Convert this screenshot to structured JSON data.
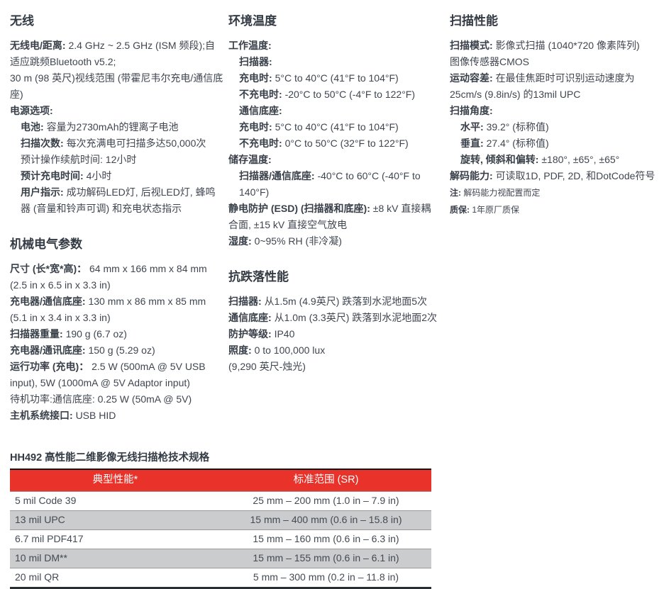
{
  "colors": {
    "accent_red": "#E8322A",
    "row_gray": "#CBCCCE",
    "text_dark": "#3F4650",
    "header_text": "#FFFFFF"
  },
  "columns": {
    "left": {
      "sections": [
        {
          "title": "无线",
          "items": [
            {
              "label": "无线电/距离:",
              "text": "2.4 GHz ~ 2.5 GHz (ISM 频段);自适应跳频Bluetooth v5.2;",
              "indent": 0
            },
            {
              "label": "",
              "text": "30 m (98 英尺)视线范围 (带霍尼韦尔充电/通信底座)",
              "indent": 0
            },
            {
              "label": "电源选项:",
              "text": "",
              "indent": 0
            },
            {
              "label": "电池:",
              "text": "容量为2730mAh的锂离子电池",
              "indent": 1
            },
            {
              "label": "扫描次数:",
              "text": "每次充满电可扫描多达50,000次",
              "indent": 1
            },
            {
              "label": "",
              "text": "预计操作续航时间: 12小时",
              "indent": 1
            },
            {
              "label": "预计充电时间:",
              "text": "4小时",
              "indent": 1
            },
            {
              "label": "用户指示:",
              "text": "成功解码LED灯, 后视LED灯, 蜂鸣器 (音量和铃声可调) 和充电状态指示",
              "indent": 1
            }
          ]
        },
        {
          "title": "机械电气参数",
          "items": [
            {
              "label": "尺寸 (长*宽*高)：",
              "text": "64 mm x 166 mm x 84 mm (2.5 in x 6.5 in x 3.3 in)",
              "indent": 0
            },
            {
              "label": "充电器/通信底座:",
              "text": "130 mm x 86 mm x 85 mm (5.1 in x 3.4 in x 3.3 in)",
              "indent": 0
            },
            {
              "label": "扫描器重量:",
              "text": "190 g (6.7 oz)",
              "indent": 0
            },
            {
              "label": "充电器/通讯底座:",
              "text": "150 g (5.29 oz)",
              "indent": 0
            },
            {
              "label": "运行功率 (充电)：",
              "text": "2.5 W (500mA @ 5V USB input), 5W (1000mA @ 5V Adaptor input)",
              "indent": 0
            },
            {
              "label": "",
              "text": "待机功率:通信底座: 0.25 W (50mA @ 5V)",
              "indent": 0
            },
            {
              "label": "主机系统接口:",
              "text": "USB HID",
              "indent": 0
            }
          ]
        }
      ]
    },
    "middle": {
      "sections": [
        {
          "title": "环境温度",
          "items": [
            {
              "label": "工作温度:",
              "text": "",
              "indent": 0
            },
            {
              "label": "扫描器:",
              "text": "",
              "indent": 1
            },
            {
              "label": "充电时:",
              "text": "5°C to 40°C (41°F to 104°F)",
              "indent": 1
            },
            {
              "label": "不充电时:",
              "text": "-20°C to 50°C (-4°F to 122°F)",
              "indent": 1
            },
            {
              "label": "通信底座:",
              "text": "",
              "indent": 1
            },
            {
              "label": "充电时:",
              "text": "5°C to 40°C (41°F to 104°F)",
              "indent": 1
            },
            {
              "label": "不充电时:",
              "text": "0°C to 50°C (32°F to 122°F)",
              "indent": 1
            },
            {
              "label": "储存温度:",
              "text": "",
              "indent": 0
            },
            {
              "label": "扫描器/通信底座:",
              "text": "-40°C to 60°C (-40°F to 140°F)",
              "indent": 1
            },
            {
              "label": "静电防护 (ESD) (扫描器和底座):",
              "text": "±8 kV 直接耦合面, ±15 kV 直接空气放电",
              "indent": 0
            },
            {
              "label": "湿度:",
              "text": "0~95% RH (非冷凝)",
              "indent": 0
            }
          ]
        },
        {
          "title": "抗跌落性能",
          "items": [
            {
              "label": "扫描器:",
              "text": "从1.5m (4.9英尺) 跌落到水泥地面5次",
              "indent": 0
            },
            {
              "label": "通信底座:",
              "text": "从1.0m (3.3英尺) 跌落到水泥地面2次",
              "indent": 0
            },
            {
              "label": "防护等级:",
              "text": "IP40",
              "indent": 0
            },
            {
              "label": "照度:",
              "text": "0 to 100,000 lux",
              "indent": 0
            },
            {
              "label": "",
              "text": "(9,290 英尺-烛光)",
              "indent": 0
            }
          ]
        }
      ]
    },
    "right": {
      "sections": [
        {
          "title": "扫描性能",
          "items": [
            {
              "label": "扫描模式:",
              "text": "影像式扫描 (1040*720 像素阵列)　图像传感器CMOS",
              "indent": 0
            },
            {
              "label": "运动容差:",
              "text": "在最佳焦距时可识别运动速度为25cm/s (9.8in/s) 的13mil UPC",
              "indent": 0
            },
            {
              "label": "扫描角度:",
              "text": "",
              "indent": 0
            },
            {
              "label": "水平:",
              "text": "39.2° (标称值)",
              "indent": 1
            },
            {
              "label": "垂直:",
              "text": "27.4° (标称值)",
              "indent": 1
            },
            {
              "label": "旋转, 倾斜和偏转:",
              "text": "±180°, ±65°, ±65°",
              "indent": 1
            },
            {
              "label": "解码能力:",
              "text": "可读取1D, PDF, 2D, 和DotCode符号",
              "indent": 0
            },
            {
              "label": "注:",
              "text": "解码能力视配置而定",
              "indent": 0,
              "small": true
            },
            {
              "label": "质保:",
              "text": "1年原厂质保",
              "indent": 0,
              "small": true
            }
          ]
        }
      ]
    }
  },
  "table": {
    "title": "HH492 高性能二维影像无线扫描枪技术规格",
    "headers": [
      "典型性能*",
      "标准范围 (SR)"
    ],
    "rows": [
      [
        "5 mil Code 39",
        "25 mm – 200 mm (1.0 in – 7.9 in)"
      ],
      [
        "13 mil UPC",
        "15 mm – 400 mm (0.6 in – 15.8 in)"
      ],
      [
        "6.7 mil PDF417",
        "15 mm – 160 mm (0.6 in – 6.3 in)"
      ],
      [
        "10 mil DM**",
        "15 mm – 155 mm (0.6 in – 6.1 in)"
      ],
      [
        "20 mil QR",
        "5 mm – 300 mm (0.2 in – 11.8 in)"
      ]
    ]
  }
}
